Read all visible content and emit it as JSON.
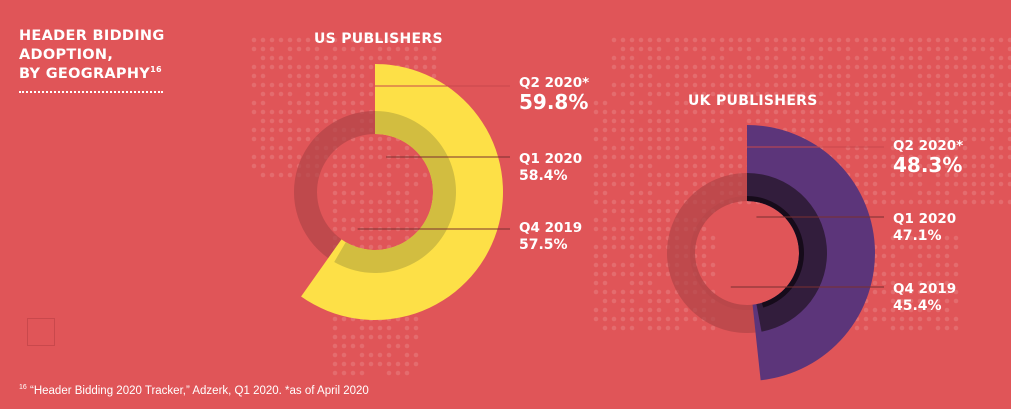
{
  "header": {
    "title_line1": "HEADER BIDDING",
    "title_line2": "ADOPTION,",
    "title_line3": "BY GEOGRAPHY",
    "title_sup": "16"
  },
  "footnote": {
    "sup": "16",
    "text": " “Header Bidding 2020 Tracker,” Adzerk, Q1 2020. *as of April 2020"
  },
  "colors": {
    "background": "#e05558",
    "map_dots": "#e46c6e",
    "us_q2": "#fde047",
    "us_q1": "#d2bd40",
    "us_q4": "#a59335",
    "uk_q2": "#5c357a",
    "uk_q1": "#321d3c",
    "uk_q4": "#160b1a",
    "remainder": "#b34648",
    "leader": "#7a2f2f"
  },
  "chart_data": [
    {
      "type": "pie",
      "title": "US PUBLISHERS",
      "unit": "%",
      "series": [
        {
          "name": "Q2 2020*",
          "value": 59.8,
          "label": "59.8%"
        },
        {
          "name": "Q1 2020",
          "value": 58.4,
          "label": "58.4%"
        },
        {
          "name": "Q4 2019",
          "value": 57.5,
          "label": "57.5%"
        }
      ]
    },
    {
      "type": "pie",
      "title": "UK PUBLISHERS",
      "unit": "%",
      "series": [
        {
          "name": "Q2 2020*",
          "value": 48.3,
          "label": "48.3%"
        },
        {
          "name": "Q1 2020",
          "value": 47.1,
          "label": "47.1%"
        },
        {
          "name": "Q4 2019",
          "value": 45.4,
          "label": "45.4%"
        }
      ]
    }
  ]
}
